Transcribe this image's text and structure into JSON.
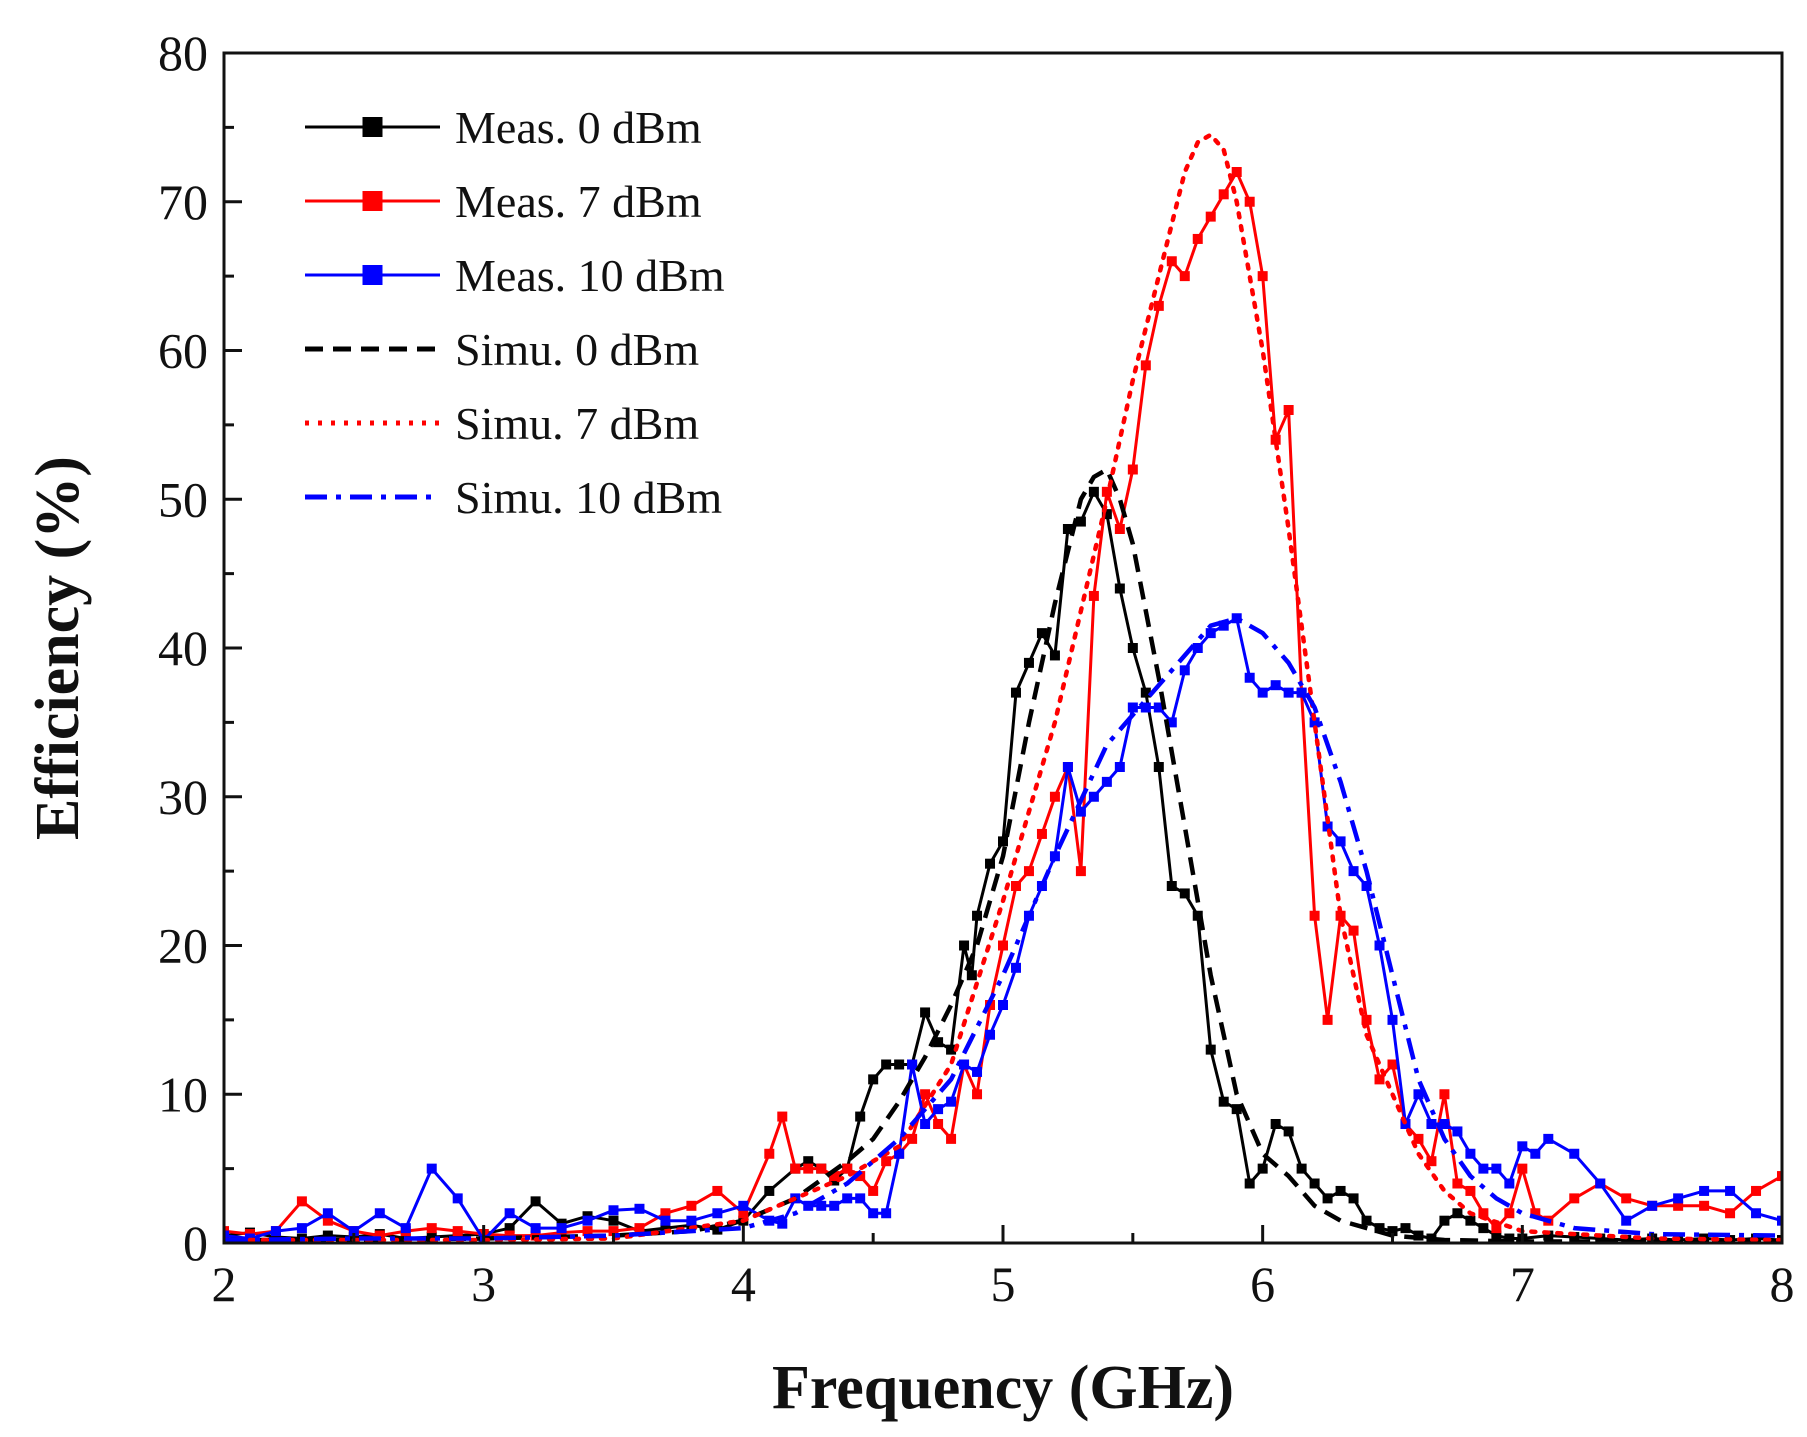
{
  "chart_data": {
    "type": "line",
    "title": "",
    "xlabel": "Frequency (GHz)",
    "ylabel": "Efficiency (%)",
    "xlim": [
      2,
      8
    ],
    "ylim": [
      0,
      80
    ],
    "xticks": [
      2,
      3,
      4,
      5,
      6,
      7,
      8
    ],
    "yticks": [
      0,
      10,
      20,
      30,
      40,
      50,
      60,
      70,
      80
    ],
    "xtick_labels": [
      "2",
      "3",
      "4",
      "5",
      "6",
      "7",
      "8"
    ],
    "ytick_labels": [
      "0",
      "10",
      "20",
      "30",
      "40",
      "50",
      "60",
      "70",
      "80"
    ],
    "grid": false,
    "legend_position": "top-left",
    "series": [
      {
        "name": "Meas. 0 dBm",
        "color": "#000000",
        "style": "solid",
        "marker": "square",
        "x": [
          2.0,
          2.1,
          2.2,
          2.3,
          2.4,
          2.5,
          2.6,
          2.7,
          2.8,
          2.9,
          3.0,
          3.1,
          3.2,
          3.3,
          3.4,
          3.5,
          3.6,
          3.7,
          3.8,
          3.9,
          4.0,
          4.1,
          4.2,
          4.25,
          4.3,
          4.35,
          4.4,
          4.45,
          4.5,
          4.55,
          4.6,
          4.65,
          4.7,
          4.75,
          4.8,
          4.85,
          4.88,
          4.9,
          4.95,
          5.0,
          5.05,
          5.1,
          5.15,
          5.2,
          5.25,
          5.3,
          5.35,
          5.4,
          5.45,
          5.5,
          5.55,
          5.6,
          5.65,
          5.7,
          5.75,
          5.8,
          5.85,
          5.9,
          5.95,
          6.0,
          6.05,
          6.1,
          6.15,
          6.2,
          6.25,
          6.3,
          6.35,
          6.4,
          6.45,
          6.5,
          6.55,
          6.6,
          6.65,
          6.7,
          6.75,
          6.8,
          6.85,
          6.9,
          6.95,
          7.0,
          7.1,
          7.2,
          7.3,
          7.4,
          7.5,
          7.6,
          7.7,
          7.8,
          7.9,
          8.0
        ],
        "y": [
          0.5,
          0.7,
          0.4,
          0.3,
          0.5,
          0.4,
          0.6,
          0.3,
          0.4,
          0.5,
          0.6,
          1.0,
          2.8,
          1.3,
          1.8,
          1.5,
          0.8,
          1.0,
          1.2,
          0.9,
          1.5,
          3.5,
          5.0,
          5.5,
          5.0,
          4.2,
          5.0,
          8.5,
          11.0,
          12.0,
          12.0,
          12.0,
          15.5,
          13.5,
          13.0,
          20.0,
          18.0,
          22.0,
          25.5,
          27.0,
          37.0,
          39.0,
          41.0,
          39.5,
          48.0,
          48.5,
          50.5,
          49.0,
          44.0,
          40.0,
          37.0,
          32.0,
          24.0,
          23.5,
          22.0,
          13.0,
          9.5,
          9.0,
          4.0,
          5.0,
          8.0,
          7.5,
          5.0,
          4.0,
          3.0,
          3.5,
          3.0,
          1.5,
          1.0,
          0.8,
          1.0,
          0.5,
          0.3,
          1.5,
          2.0,
          1.5,
          1.0,
          0.5,
          0.3,
          0.3,
          0.5,
          0.4,
          0.3,
          0.2,
          0.3,
          0.2,
          0.3,
          0.2,
          0.3,
          0.2
        ]
      },
      {
        "name": "Meas. 7 dBm",
        "color": "#ff0000",
        "style": "solid",
        "marker": "square",
        "x": [
          2.0,
          2.1,
          2.2,
          2.3,
          2.4,
          2.5,
          2.6,
          2.7,
          2.8,
          2.9,
          3.0,
          3.1,
          3.2,
          3.3,
          3.4,
          3.5,
          3.6,
          3.7,
          3.8,
          3.9,
          4.0,
          4.1,
          4.15,
          4.2,
          4.25,
          4.3,
          4.35,
          4.4,
          4.45,
          4.5,
          4.55,
          4.6,
          4.65,
          4.7,
          4.75,
          4.8,
          4.85,
          4.9,
          4.95,
          5.0,
          5.05,
          5.1,
          5.15,
          5.2,
          5.25,
          5.3,
          5.35,
          5.4,
          5.45,
          5.5,
          5.55,
          5.6,
          5.65,
          5.7,
          5.75,
          5.8,
          5.85,
          5.9,
          5.95,
          6.0,
          6.05,
          6.1,
          6.15,
          6.2,
          6.25,
          6.3,
          6.35,
          6.4,
          6.45,
          6.5,
          6.55,
          6.6,
          6.65,
          6.7,
          6.75,
          6.8,
          6.85,
          6.9,
          6.95,
          7.0,
          7.05,
          7.1,
          7.2,
          7.3,
          7.4,
          7.5,
          7.6,
          7.7,
          7.8,
          7.9,
          8.0
        ],
        "y": [
          0.8,
          0.6,
          0.8,
          2.8,
          1.5,
          0.8,
          0.5,
          0.8,
          1.0,
          0.8,
          0.6,
          0.5,
          0.5,
          0.7,
          0.8,
          0.8,
          1.0,
          2.0,
          2.5,
          3.5,
          2.0,
          6.0,
          8.5,
          5.0,
          5.0,
          5.0,
          4.5,
          5.0,
          4.5,
          3.5,
          5.5,
          6.0,
          7.0,
          10.0,
          8.0,
          7.0,
          12.0,
          10.0,
          16.0,
          20.0,
          24.0,
          25.0,
          27.5,
          30.0,
          32.0,
          25.0,
          43.5,
          50.5,
          48.0,
          52.0,
          59.0,
          63.0,
          66.0,
          65.0,
          67.5,
          69.0,
          70.5,
          72.0,
          70.0,
          65.0,
          54.0,
          56.0,
          37.0,
          22.0,
          15.0,
          22.0,
          21.0,
          15.0,
          11.0,
          12.0,
          8.0,
          7.0,
          5.5,
          10.0,
          4.0,
          3.5,
          2.0,
          1.0,
          2.0,
          5.0,
          2.0,
          1.5,
          3.0,
          4.0,
          3.0,
          2.5,
          2.5,
          2.5,
          2.0,
          3.5,
          4.5
        ]
      },
      {
        "name": "Meas. 10 dBm",
        "color": "#0000ff",
        "style": "solid",
        "marker": "square",
        "x": [
          2.0,
          2.1,
          2.2,
          2.3,
          2.4,
          2.5,
          2.6,
          2.7,
          2.8,
          2.9,
          3.0,
          3.1,
          3.2,
          3.3,
          3.4,
          3.5,
          3.6,
          3.7,
          3.8,
          3.9,
          4.0,
          4.1,
          4.15,
          4.2,
          4.25,
          4.3,
          4.35,
          4.4,
          4.45,
          4.5,
          4.55,
          4.6,
          4.65,
          4.7,
          4.75,
          4.8,
          4.85,
          4.9,
          4.95,
          5.0,
          5.05,
          5.1,
          5.15,
          5.2,
          5.25,
          5.3,
          5.35,
          5.4,
          5.45,
          5.5,
          5.55,
          5.6,
          5.65,
          5.7,
          5.75,
          5.8,
          5.85,
          5.9,
          5.95,
          6.0,
          6.05,
          6.1,
          6.15,
          6.2,
          6.25,
          6.3,
          6.35,
          6.4,
          6.45,
          6.5,
          6.55,
          6.6,
          6.65,
          6.7,
          6.75,
          6.8,
          6.85,
          6.9,
          6.95,
          7.0,
          7.05,
          7.1,
          7.2,
          7.3,
          7.4,
          7.5,
          7.6,
          7.7,
          7.8,
          7.9,
          8.0
        ],
        "y": [
          0.5,
          0.3,
          0.8,
          1.0,
          2.0,
          0.8,
          2.0,
          1.0,
          5.0,
          3.0,
          0.2,
          2.0,
          1.0,
          1.0,
          1.5,
          2.2,
          2.3,
          1.5,
          1.5,
          2.0,
          2.5,
          1.5,
          1.3,
          3.0,
          2.5,
          2.5,
          2.5,
          3.0,
          3.0,
          2.0,
          2.0,
          6.0,
          12.0,
          8.0,
          9.0,
          9.5,
          12.0,
          11.5,
          14.0,
          16.0,
          18.5,
          22.0,
          24.0,
          26.0,
          32.0,
          29.0,
          30.0,
          31.0,
          32.0,
          36.0,
          36.0,
          36.0,
          35.0,
          38.5,
          40.0,
          41.0,
          41.5,
          42.0,
          38.0,
          37.0,
          37.5,
          37.0,
          37.0,
          35.0,
          28.0,
          27.0,
          25.0,
          24.0,
          20.0,
          15.0,
          8.0,
          10.0,
          8.0,
          8.0,
          7.5,
          6.0,
          5.0,
          5.0,
          4.0,
          6.5,
          6.0,
          7.0,
          6.0,
          4.0,
          1.5,
          2.5,
          3.0,
          3.5,
          3.5,
          2.0,
          1.5
        ]
      },
      {
        "name": "Simu. 0 dBm",
        "color": "#000000",
        "style": "dashed",
        "marker": "none",
        "x": [
          2.0,
          2.5,
          3.0,
          3.5,
          3.8,
          4.0,
          4.2,
          4.4,
          4.5,
          4.6,
          4.7,
          4.8,
          4.9,
          5.0,
          5.1,
          5.2,
          5.3,
          5.35,
          5.4,
          5.45,
          5.5,
          5.6,
          5.7,
          5.8,
          5.9,
          6.0,
          6.1,
          6.2,
          6.3,
          6.4,
          6.5,
          6.7,
          7.0,
          7.5,
          8.0
        ],
        "y": [
          0.2,
          0.2,
          0.3,
          0.5,
          0.8,
          1.5,
          3.0,
          5.5,
          7.0,
          9.5,
          12.5,
          16.0,
          20.0,
          26.0,
          35.0,
          43.0,
          50.0,
          51.5,
          52.0,
          50.0,
          47.0,
          38.0,
          28.0,
          18.0,
          10.0,
          6.0,
          4.5,
          2.5,
          1.5,
          1.0,
          0.5,
          0.2,
          0.1,
          0.1,
          0.1
        ]
      },
      {
        "name": "Simu. 7 dBm",
        "color": "#ff0000",
        "style": "dotted",
        "marker": "none",
        "x": [
          2.0,
          2.5,
          3.0,
          3.5,
          4.0,
          4.2,
          4.4,
          4.6,
          4.8,
          5.0,
          5.2,
          5.4,
          5.5,
          5.6,
          5.7,
          5.75,
          5.8,
          5.85,
          5.9,
          6.0,
          6.1,
          6.2,
          6.3,
          6.4,
          6.5,
          6.6,
          6.7,
          6.8,
          7.0,
          7.5,
          8.0
        ],
        "y": [
          0.2,
          0.2,
          0.2,
          0.3,
          1.5,
          3.0,
          4.5,
          6.5,
          12.0,
          23.0,
          35.0,
          50.0,
          58.0,
          65.0,
          72.0,
          74.0,
          74.5,
          73.5,
          70.0,
          60.0,
          48.0,
          35.0,
          22.0,
          14.0,
          10.0,
          6.0,
          3.5,
          2.0,
          0.8,
          0.3,
          0.2
        ]
      },
      {
        "name": "Simu. 10 dBm",
        "color": "#0000ff",
        "style": "dashdot",
        "marker": "none",
        "x": [
          2.0,
          2.5,
          3.0,
          3.5,
          4.0,
          4.2,
          4.4,
          4.6,
          4.8,
          5.0,
          5.2,
          5.4,
          5.5,
          5.6,
          5.7,
          5.8,
          5.9,
          6.0,
          6.1,
          6.2,
          6.3,
          6.4,
          6.5,
          6.6,
          6.7,
          6.8,
          6.9,
          7.0,
          7.2,
          7.5,
          8.0
        ],
        "y": [
          0.2,
          0.3,
          0.3,
          0.5,
          1.0,
          2.0,
          4.0,
          7.0,
          11.0,
          18.0,
          26.0,
          33.5,
          35.5,
          37.5,
          39.5,
          41.5,
          42.0,
          41.0,
          39.0,
          36.0,
          31.0,
          25.0,
          18.0,
          11.0,
          7.0,
          4.5,
          3.0,
          2.0,
          1.0,
          0.6,
          0.5
        ]
      }
    ]
  }
}
